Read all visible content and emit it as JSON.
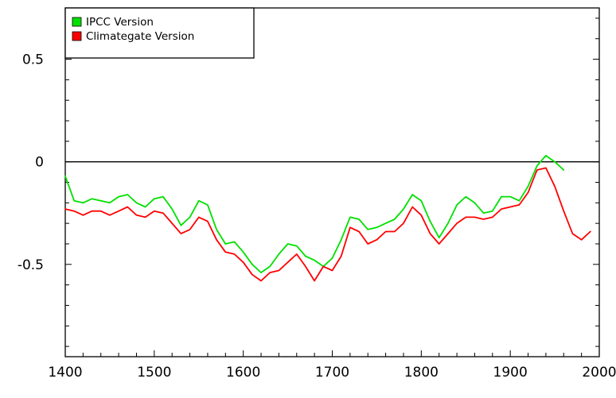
{
  "chart_data": {
    "type": "line",
    "xlim": [
      1400,
      2000
    ],
    "ylim": [
      -0.95,
      0.75
    ],
    "x_ticks": [
      1400,
      1500,
      1600,
      1700,
      1800,
      1900,
      2000
    ],
    "x_tick_labels": [
      "1400",
      "1500",
      "1600",
      "1700",
      "1800",
      "1900",
      "2000"
    ],
    "y_ticks": [
      0.5,
      0,
      -0.5
    ],
    "y_tick_labels": [
      "0.5",
      "0",
      "-0.5"
    ],
    "zero_line": true,
    "grid": false,
    "legend_position": "top-left",
    "series": [
      {
        "name": "IPCC Version",
        "color": "#00e000",
        "x": [
          1400,
          1410,
          1420,
          1430,
          1440,
          1450,
          1460,
          1470,
          1480,
          1490,
          1500,
          1510,
          1520,
          1530,
          1540,
          1550,
          1560,
          1570,
          1580,
          1590,
          1600,
          1610,
          1620,
          1630,
          1640,
          1650,
          1660,
          1670,
          1680,
          1690,
          1700,
          1710,
          1720,
          1730,
          1740,
          1750,
          1760,
          1770,
          1780,
          1790,
          1800,
          1810,
          1820,
          1830,
          1840,
          1850,
          1860,
          1870,
          1880,
          1890,
          1900,
          1910,
          1920,
          1930,
          1940,
          1950,
          1960
        ],
        "y": [
          -0.07,
          -0.19,
          -0.2,
          -0.18,
          -0.19,
          -0.2,
          -0.17,
          -0.16,
          -0.2,
          -0.22,
          -0.18,
          -0.17,
          -0.23,
          -0.31,
          -0.27,
          -0.19,
          -0.21,
          -0.33,
          -0.4,
          -0.39,
          -0.44,
          -0.5,
          -0.54,
          -0.51,
          -0.45,
          -0.4,
          -0.41,
          -0.46,
          -0.48,
          -0.51,
          -0.47,
          -0.38,
          -0.27,
          -0.28,
          -0.33,
          -0.32,
          -0.3,
          -0.28,
          -0.23,
          -0.16,
          -0.19,
          -0.29,
          -0.37,
          -0.3,
          -0.21,
          -0.17,
          -0.2,
          -0.25,
          -0.24,
          -0.17,
          -0.17,
          -0.19,
          -0.12,
          -0.02,
          0.03,
          0.0,
          -0.04
        ]
      },
      {
        "name": "Climategate Version",
        "color": "#ff0000",
        "x": [
          1400,
          1410,
          1420,
          1430,
          1440,
          1450,
          1460,
          1470,
          1480,
          1490,
          1500,
          1510,
          1520,
          1530,
          1540,
          1550,
          1560,
          1570,
          1580,
          1590,
          1600,
          1610,
          1620,
          1630,
          1640,
          1650,
          1660,
          1670,
          1680,
          1690,
          1700,
          1710,
          1720,
          1730,
          1740,
          1750,
          1760,
          1770,
          1780,
          1790,
          1800,
          1810,
          1820,
          1830,
          1840,
          1850,
          1860,
          1870,
          1880,
          1890,
          1900,
          1910,
          1920,
          1930,
          1940,
          1950,
          1960,
          1970,
          1980,
          1990
        ],
        "y": [
          -0.23,
          -0.24,
          -0.26,
          -0.24,
          -0.24,
          -0.26,
          -0.24,
          -0.22,
          -0.26,
          -0.27,
          -0.24,
          -0.25,
          -0.3,
          -0.35,
          -0.33,
          -0.27,
          -0.29,
          -0.38,
          -0.44,
          -0.45,
          -0.49,
          -0.55,
          -0.58,
          -0.54,
          -0.53,
          -0.49,
          -0.45,
          -0.51,
          -0.58,
          -0.51,
          -0.53,
          -0.46,
          -0.32,
          -0.34,
          -0.4,
          -0.38,
          -0.34,
          -0.34,
          -0.3,
          -0.22,
          -0.26,
          -0.35,
          -0.4,
          -0.35,
          -0.3,
          -0.27,
          -0.27,
          -0.28,
          -0.27,
          -0.23,
          -0.22,
          -0.21,
          -0.15,
          -0.04,
          -0.03,
          -0.12,
          -0.24,
          -0.35,
          -0.38,
          -0.34
        ]
      }
    ]
  }
}
